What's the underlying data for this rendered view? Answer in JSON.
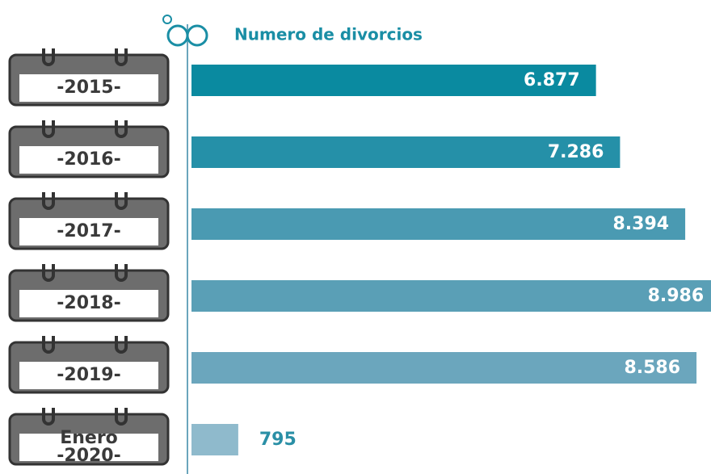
{
  "chart_data": {
    "type": "bar",
    "orientation": "horizontal",
    "title": "Numero de divorcios",
    "categories": [
      "-2015-",
      "-2016-",
      "-2017-",
      "-2018-",
      "-2019-",
      "Enero\n-2020-"
    ],
    "values": [
      6877,
      7286,
      8394,
      8986,
      8586,
      795
    ],
    "value_labels": [
      "6.877",
      "7.286",
      "8.394",
      "8.986",
      "8.586",
      "795"
    ],
    "colors": [
      "#0a8aa0",
      "#2590a8",
      "#4a9ab2",
      "#5a9fb6",
      "#6ba6bd",
      "#8fbacc"
    ]
  }
}
